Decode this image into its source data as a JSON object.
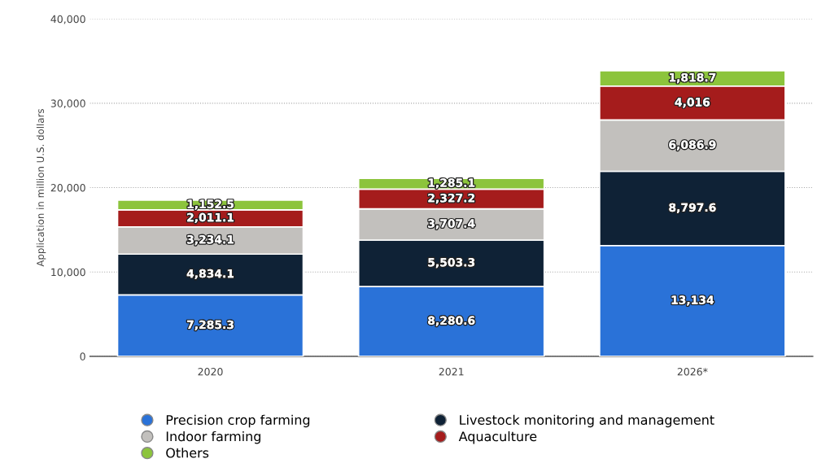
{
  "chart_data": {
    "type": "bar",
    "stacked": true,
    "ylabel": "Application in million U.S. dollars",
    "categories": [
      "2020",
      "2021",
      "2026*"
    ],
    "series": [
      {
        "name": "Precision crop farming",
        "color": "#2a72d8",
        "values": [
          7285.3,
          8280.6,
          13134
        ],
        "value_labels": [
          "7,285.3",
          "8,280.6",
          "13,134"
        ]
      },
      {
        "name": "Livestock monitoring and management",
        "color": "#0f2236",
        "values": [
          4834.1,
          5503.3,
          8797.6
        ],
        "value_labels": [
          "4,834.1",
          "5,503.3",
          "8,797.6"
        ]
      },
      {
        "name": "Indoor farming",
        "color": "#c2c0bd",
        "values": [
          3234.1,
          3707.4,
          6086.9
        ],
        "value_labels": [
          "3,234.1",
          "3,707.4",
          "6,086.9"
        ]
      },
      {
        "name": "Aquaculture",
        "color": "#a51c1c",
        "values": [
          2011.1,
          2327.2,
          4016
        ],
        "value_labels": [
          "2,011.1",
          "2,327.2",
          "4,016"
        ]
      },
      {
        "name": "Others",
        "color": "#8cc43c",
        "values": [
          1152.5,
          1285.1,
          1818.7
        ],
        "value_labels": [
          "1,152.5",
          "1,285.1",
          "1,818.7"
        ]
      }
    ],
    "ylim": [
      0,
      40000
    ],
    "yticks": [
      0,
      {
        "value": 10000,
        "label": "10,000"
      },
      {
        "value": 20000,
        "label": "20,000"
      },
      {
        "value": 30000,
        "label": "30,000"
      },
      {
        "value": 40000,
        "label": "40,000"
      }
    ],
    "grid": "y",
    "legend": "bottom"
  }
}
